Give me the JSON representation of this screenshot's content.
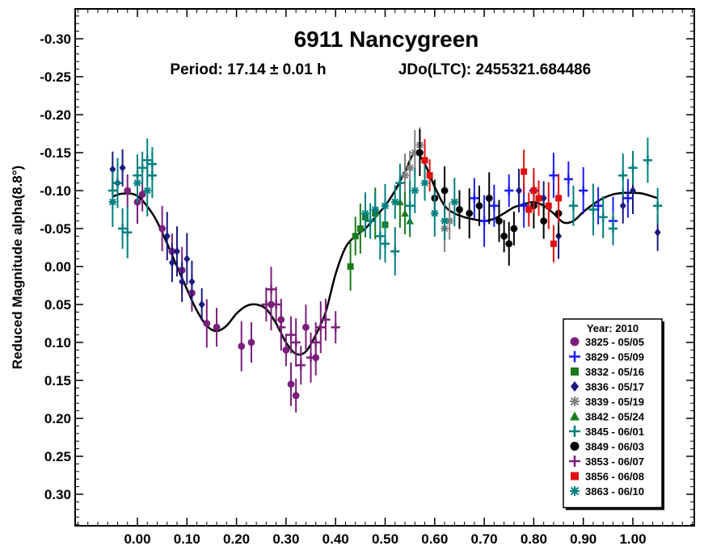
{
  "chart_data": {
    "type": "scatter",
    "title": "6911 Nancygreen",
    "subtitle_period": "Period: 17.14 ± 0.01 h",
    "subtitle_epoch": "JDo(LTC): 2455321.684486",
    "xlabel": "",
    "ylabel": "Reduced Magnitude alpha(8.8°)",
    "xlim": [
      -0.1,
      1.12
    ],
    "ylim": [
      0.35,
      -0.35
    ],
    "y_inverted": true,
    "x_ticks": [
      "0.00",
      "0.10",
      "0.20",
      "0.30",
      "0.40",
      "0.50",
      "0.60",
      "0.70",
      "0.80",
      "0.90",
      "1.00"
    ],
    "x_tick_values": [
      0.0,
      0.1,
      0.2,
      0.3,
      0.4,
      0.5,
      0.6,
      0.7,
      0.8,
      0.9,
      1.0
    ],
    "y_ticks": [
      "-0.30",
      "-0.25",
      "-0.20",
      "-0.15",
      "-0.10",
      "-0.05",
      "0.00",
      "0.05",
      "0.10",
      "0.15",
      "0.20",
      "0.25",
      "0.30"
    ],
    "y_tick_values": [
      -0.3,
      -0.25,
      -0.2,
      -0.15,
      -0.1,
      -0.05,
      0.0,
      0.05,
      0.1,
      0.15,
      0.2,
      0.25,
      0.3
    ],
    "legend_title": "Year: 2010",
    "legend_position": "bottom-right",
    "fit_curve": {
      "x": [
        -0.05,
        -0.03,
        0.0,
        0.03,
        0.05,
        0.08,
        0.1,
        0.12,
        0.14,
        0.16,
        0.18,
        0.2,
        0.22,
        0.24,
        0.26,
        0.28,
        0.3,
        0.32,
        0.34,
        0.36,
        0.38,
        0.4,
        0.42,
        0.44,
        0.46,
        0.48,
        0.5,
        0.52,
        0.54,
        0.56,
        0.58,
        0.6,
        0.62,
        0.64,
        0.66,
        0.68,
        0.7,
        0.72,
        0.74,
        0.76,
        0.78,
        0.8,
        0.82,
        0.84,
        0.86,
        0.88,
        0.9,
        0.92,
        0.94,
        0.96,
        0.98,
        1.0,
        1.02,
        1.05
      ],
      "y": [
        -0.092,
        -0.096,
        -0.093,
        -0.07,
        -0.045,
        0.0,
        0.03,
        0.058,
        0.078,
        0.085,
        0.078,
        0.062,
        0.052,
        0.05,
        0.056,
        0.075,
        0.1,
        0.115,
        0.112,
        0.09,
        0.06,
        0.01,
        -0.025,
        -0.04,
        -0.05,
        -0.065,
        -0.08,
        -0.1,
        -0.125,
        -0.15,
        -0.135,
        -0.105,
        -0.08,
        -0.07,
        -0.065,
        -0.062,
        -0.06,
        -0.063,
        -0.07,
        -0.078,
        -0.082,
        -0.085,
        -0.08,
        -0.07,
        -0.058,
        -0.06,
        -0.072,
        -0.082,
        -0.09,
        -0.095,
        -0.097,
        -0.097,
        -0.096,
        -0.09
      ]
    },
    "series": [
      {
        "name": "3825 - 05/05",
        "color": "#7b1f7b",
        "marker": "circle",
        "points": [
          [
            -0.02,
            -0.1
          ],
          [
            0.0,
            -0.085
          ],
          [
            0.01,
            -0.095
          ],
          [
            0.05,
            -0.05
          ],
          [
            0.07,
            -0.02
          ],
          [
            0.09,
            0.005
          ],
          [
            0.11,
            0.035
          ],
          [
            0.14,
            0.075
          ],
          [
            0.16,
            0.08
          ],
          [
            0.21,
            0.105
          ],
          [
            0.23,
            0.1
          ],
          [
            0.27,
            0.05
          ],
          [
            0.29,
            0.07
          ],
          [
            0.3,
            0.11
          ],
          [
            0.31,
            0.155
          ],
          [
            0.32,
            0.17
          ],
          [
            0.34,
            0.08
          ],
          [
            0.36,
            0.12
          ]
        ]
      },
      {
        "name": "3829 - 05/09",
        "color": "#1a1aff",
        "marker": "plus",
        "points": [
          [
            0.68,
            -0.09
          ],
          [
            0.7,
            -0.06
          ],
          [
            0.72,
            -0.08
          ],
          [
            0.75,
            -0.1
          ],
          [
            0.78,
            -0.08
          ],
          [
            0.8,
            -0.1
          ],
          [
            0.84,
            -0.12
          ],
          [
            0.87,
            -0.115
          ],
          [
            0.9,
            -0.1
          ],
          [
            0.93,
            -0.08
          ],
          [
            0.96,
            -0.06
          ],
          [
            0.99,
            -0.09
          ]
        ]
      },
      {
        "name": "3832 - 05/16",
        "color": "#1a7a1a",
        "marker": "square",
        "points": [
          [
            0.43,
            0.0
          ],
          [
            0.44,
            -0.04
          ],
          [
            0.45,
            -0.05
          ],
          [
            0.46,
            -0.065
          ],
          [
            0.48,
            -0.07
          ],
          [
            0.5,
            -0.055
          ]
        ]
      },
      {
        "name": "3836 - 05/17",
        "color": "#1a1a80",
        "marker": "diamond",
        "points": [
          [
            -0.05,
            -0.128
          ],
          [
            -0.04,
            -0.11
          ],
          [
            -0.03,
            -0.13
          ],
          [
            0.06,
            -0.04
          ],
          [
            0.07,
            -0.005
          ],
          [
            0.08,
            -0.02
          ],
          [
            0.09,
            0.02
          ],
          [
            0.1,
            -0.01
          ],
          [
            0.11,
            0.02
          ],
          [
            0.13,
            0.05
          ],
          [
            0.77,
            -0.1
          ],
          [
            0.82,
            -0.09
          ],
          [
            0.85,
            -0.04
          ],
          [
            0.98,
            -0.08
          ],
          [
            1.0,
            -0.1
          ],
          [
            1.05,
            -0.045
          ]
        ]
      },
      {
        "name": "3839 - 05/19",
        "color": "#808080",
        "marker": "star",
        "points": [
          [
            0.54,
            -0.12
          ],
          [
            0.55,
            -0.13
          ],
          [
            0.56,
            -0.15
          ],
          [
            0.57,
            -0.16
          ],
          [
            0.62,
            -0.05
          ],
          [
            0.63,
            -0.06
          ]
        ]
      },
      {
        "name": "3842 - 05/24",
        "color": "#1a7a1a",
        "marker": "triangle",
        "points": [
          [
            0.53,
            -0.085
          ],
          [
            0.54,
            -0.07
          ],
          [
            0.55,
            -0.06
          ]
        ]
      },
      {
        "name": "3845 - 06/01",
        "color": "#008080",
        "marker": "plus",
        "points": [
          [
            -0.05,
            -0.1
          ],
          [
            -0.04,
            -0.11
          ],
          [
            -0.03,
            -0.05
          ],
          [
            -0.02,
            -0.045
          ],
          [
            0.0,
            -0.12
          ],
          [
            0.01,
            -0.13
          ],
          [
            0.02,
            -0.14
          ],
          [
            0.03,
            -0.135
          ],
          [
            0.03,
            -0.12
          ],
          [
            0.47,
            -0.06
          ],
          [
            0.49,
            -0.04
          ],
          [
            0.5,
            -0.03
          ],
          [
            0.52,
            -0.02
          ],
          [
            0.53,
            -0.11
          ],
          [
            0.55,
            -0.08
          ],
          [
            0.88,
            -0.08
          ],
          [
            0.92,
            -0.075
          ],
          [
            0.94,
            -0.065
          ],
          [
            0.96,
            -0.05
          ],
          [
            0.98,
            -0.12
          ],
          [
            1.0,
            -0.13
          ],
          [
            1.03,
            -0.14
          ],
          [
            1.05,
            -0.08
          ]
        ]
      },
      {
        "name": "3849 - 06/03",
        "color": "#000000",
        "marker": "circle",
        "points": [
          [
            0.57,
            -0.15
          ],
          [
            0.6,
            -0.09
          ],
          [
            0.62,
            -0.1
          ],
          [
            0.65,
            -0.075
          ],
          [
            0.67,
            -0.07
          ],
          [
            0.69,
            -0.08
          ],
          [
            0.71,
            -0.09
          ],
          [
            0.73,
            -0.06
          ],
          [
            0.74,
            -0.04
          ],
          [
            0.75,
            -0.03
          ],
          [
            0.76,
            -0.05
          ],
          [
            0.8,
            -0.08
          ],
          [
            0.82,
            -0.06
          ],
          [
            0.85,
            -0.07
          ]
        ]
      },
      {
        "name": "3853 - 06/07",
        "color": "#7b1f7b",
        "marker": "plus",
        "points": [
          [
            0.26,
            0.05
          ],
          [
            0.27,
            0.03
          ],
          [
            0.28,
            0.05
          ],
          [
            0.29,
            0.08
          ],
          [
            0.31,
            0.09
          ],
          [
            0.32,
            0.1
          ],
          [
            0.33,
            0.13
          ],
          [
            0.35,
            0.12
          ],
          [
            0.36,
            0.1
          ],
          [
            0.37,
            0.08
          ],
          [
            0.38,
            0.07
          ],
          [
            0.4,
            0.08
          ]
        ]
      },
      {
        "name": "3856 - 06/08",
        "color": "#e01010",
        "marker": "square",
        "points": [
          [
            0.58,
            -0.14
          ],
          [
            0.59,
            -0.12
          ],
          [
            0.78,
            -0.125
          ],
          [
            0.79,
            -0.075
          ],
          [
            0.8,
            -0.1
          ],
          [
            0.81,
            -0.09
          ],
          [
            0.83,
            -0.08
          ],
          [
            0.84,
            -0.03
          ],
          [
            0.85,
            -0.09
          ]
        ]
      },
      {
        "name": "3863 - 06/10",
        "color": "#008080",
        "marker": "star",
        "points": [
          [
            -0.05,
            -0.085
          ],
          [
            0.0,
            -0.11
          ],
          [
            0.02,
            -0.1
          ],
          [
            0.46,
            -0.07
          ],
          [
            0.48,
            -0.075
          ],
          [
            0.5,
            -0.08
          ],
          [
            0.52,
            -0.085
          ],
          [
            0.56,
            -0.1
          ],
          [
            0.58,
            -0.11
          ],
          [
            0.6,
            -0.07
          ],
          [
            0.62,
            -0.06
          ],
          [
            0.64,
            -0.085
          ]
        ]
      }
    ]
  }
}
